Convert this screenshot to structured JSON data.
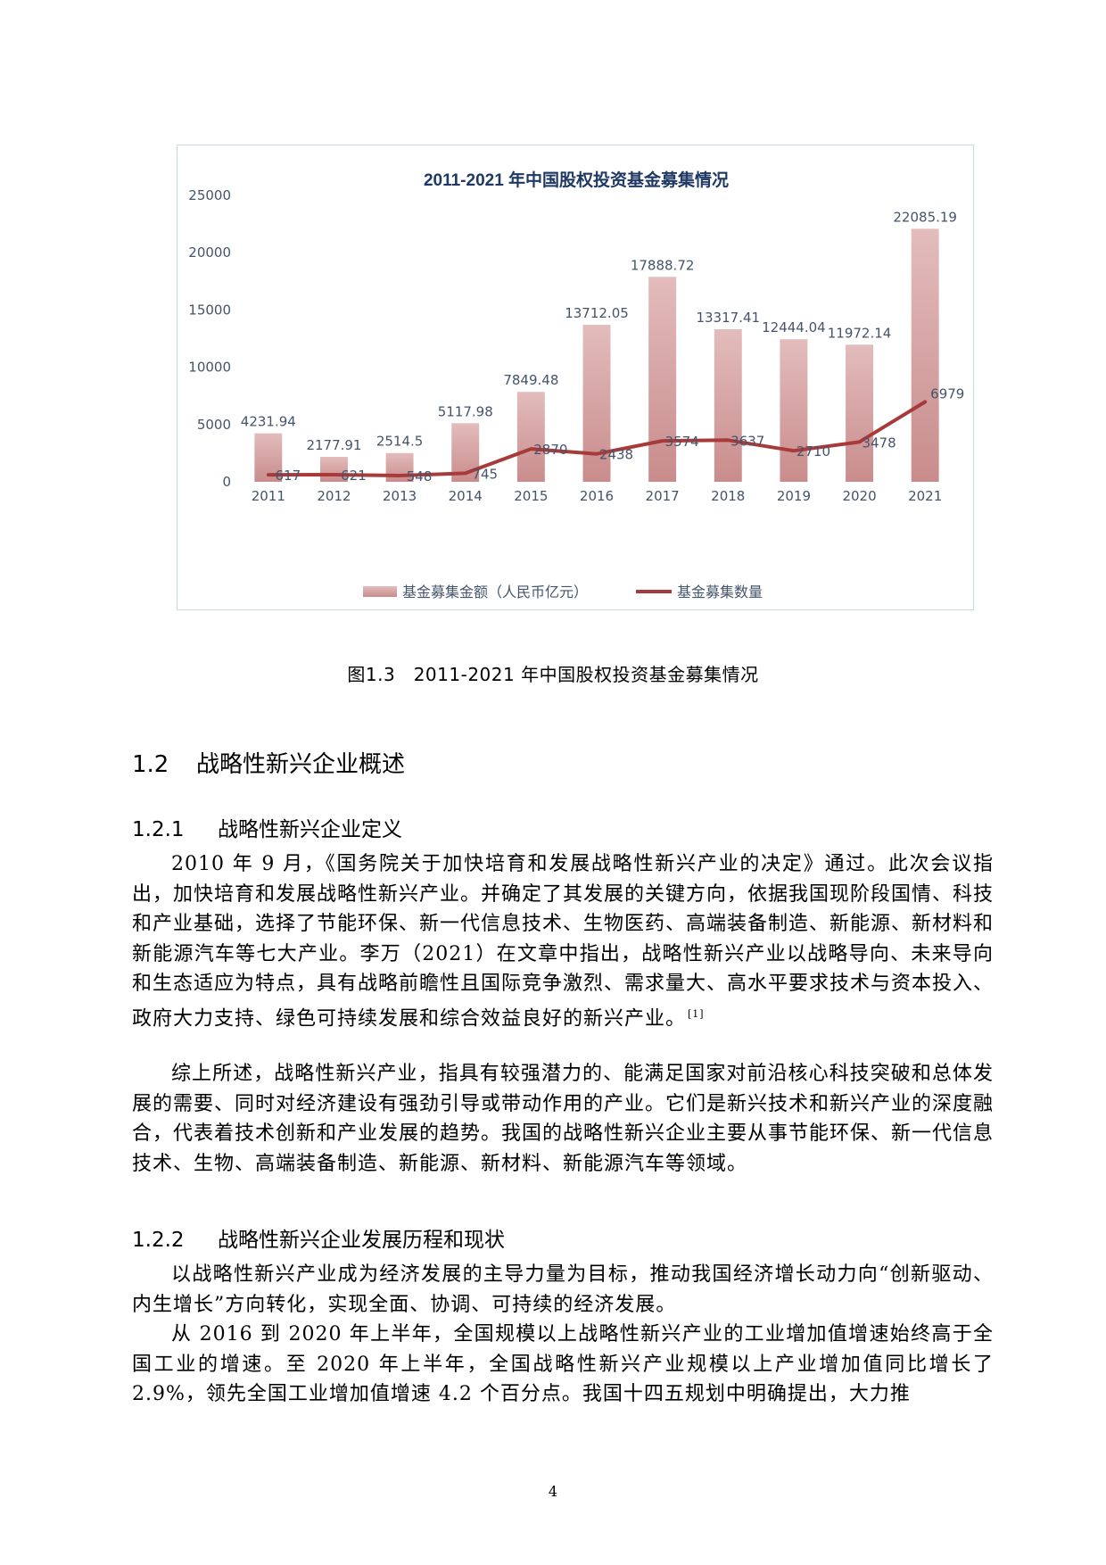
{
  "chart_data": {
    "type": "bar",
    "title": "2011-2021 年中国股权投资基金募集情况",
    "categories": [
      "2011",
      "2012",
      "2013",
      "2014",
      "2015",
      "2016",
      "2017",
      "2018",
      "2019",
      "2020",
      "2021"
    ],
    "series": [
      {
        "name": "基金募集金额（人民币亿元）",
        "kind": "bar",
        "values": [
          4231.94,
          2177.91,
          2514.5,
          5117.98,
          7849.48,
          13712.05,
          17888.72,
          13317.41,
          12444.04,
          11972.14,
          22085.19
        ],
        "labels": [
          "4231.94",
          "2177.91",
          "2514.5",
          "5117.98",
          "7849.48",
          "13712.05",
          "17888.72",
          "13317.41",
          "12444.04",
          "11972.14",
          "22085.19"
        ]
      },
      {
        "name": "基金募集数量",
        "kind": "line",
        "values": [
          617,
          621,
          548,
          745,
          2870,
          2438,
          3574,
          3637,
          2710,
          3478,
          6979
        ],
        "labels": [
          "617",
          "621",
          "548",
          "745",
          "2870",
          "2438",
          "3574",
          "3637",
          "2710",
          "3478",
          "6979"
        ]
      }
    ],
    "yticks": [
      "0",
      "5000",
      "10000",
      "15000",
      "20000",
      "25000"
    ],
    "ylim": [
      0,
      25000
    ],
    "grid": false,
    "legend": "bottom",
    "colors": {
      "bar_top": "#dfb5b5",
      "bar_bottom": "#c98e8e",
      "line": "#a83a3a",
      "text": "#44546a",
      "title": "#1f3864"
    }
  },
  "caption": "图1.3　2011-2021 年中国股权投资基金募集情况",
  "section": {
    "number": "1.2",
    "title": "战略性新兴企业概述"
  },
  "sub1": {
    "number": "1.2.1",
    "title": "战略性新兴企业定义"
  },
  "sub2": {
    "number": "1.2.2",
    "title": "战略性新兴企业发展历程和现状"
  },
  "paragraphs": {
    "p1": "2010 年 9 月，《国务院关于加快培育和发展战略性新兴产业的决定》通过。此次会议指出，加快培育和发展战略性新兴产业。并确定了其发展的关键方向，依据我国现阶段国情、科技和产业基础，选择了节能环保、新一代信息技术、生物医药、高端装备制造、新能源、新材料和新能源汽车等七大产业。李万（2021）在文章中指出，战略性新兴产业以战略导向、未来导向和生态适应为特点，具有战略前瞻性且国际竞争激烈、需求量大、高水平要求技术与资本投入、政府大力支持、绿色可持续发展和综合效益良好的新兴产业。",
    "p1_ref": "[1]",
    "p2": "综上所述，战略性新兴产业，指具有较强潜力的、能满足国家对前沿核心科技突破和总体发展的需要、同时对经济建设有强劲引导或带动作用的产业。它们是新兴技术和新兴产业的深度融合，代表着技术创新和产业发展的趋势。我国的战略性新兴企业主要从事节能环保、新一代信息技术、生物、高端装备制造、新能源、新材料、新能源汽车等领域。",
    "p3": "以战略性新兴产业成为经济发展的主导力量为目标，推动我国经济增长动力向“创新驱动、内生增长”方向转化，实现全面、协调、可持续的经济发展。",
    "p4": "从 2016 到 2020 年上半年，全国规模以上战略性新兴产业的工业增加值增速始终高于全国工业的增速。至 2020 年上半年，全国战略性新兴产业规模以上产业增加值同比增长了 2.9%，领先全国工业增加值增速 4.2 个百分点。我国十四五规划中明确提出，大力推"
  },
  "page_number": "4"
}
